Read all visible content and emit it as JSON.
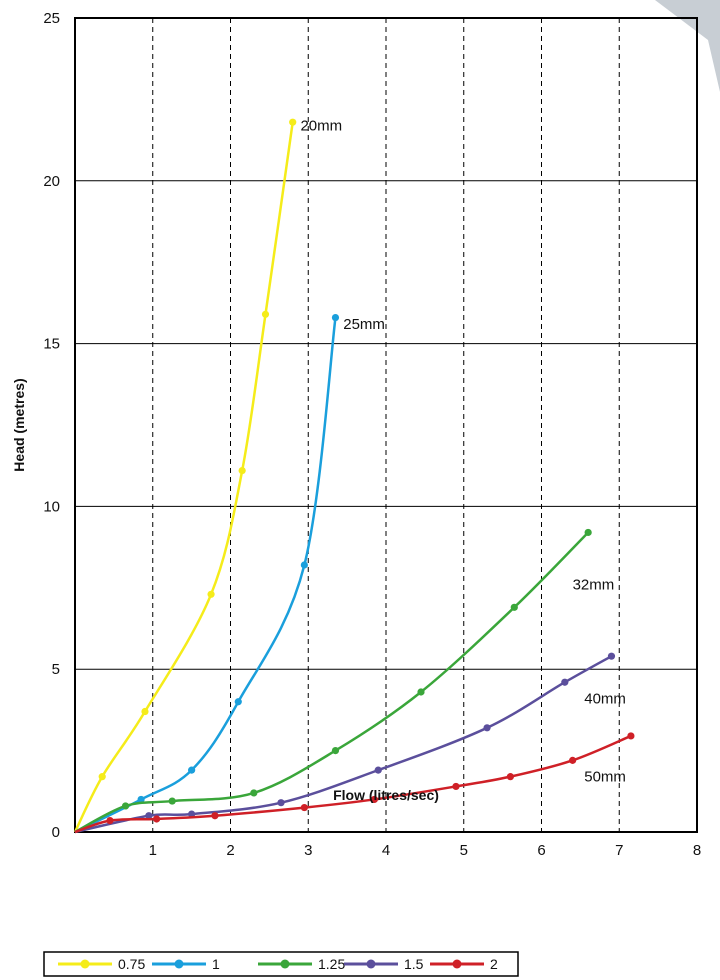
{
  "chart_data": {
    "type": "line",
    "xlabel": "Flow (litres/sec)",
    "ylabel": "Head (metres)",
    "xlim": [
      0,
      8
    ],
    "ylim": [
      0,
      25
    ],
    "x_ticks": [
      1,
      2,
      3,
      4,
      5,
      6,
      7,
      8
    ],
    "x_ticks_shown": [
      "1",
      "2",
      "3",
      "4",
      "5",
      "6",
      "7",
      "8"
    ],
    "y_ticks": [
      0,
      5,
      10,
      15,
      20,
      25
    ],
    "y_ticks_shown": [
      "0",
      "5",
      "10",
      "15",
      "20",
      "25"
    ],
    "grid": {
      "horizontal": "solid",
      "vertical": "dashed"
    },
    "legend_position": "bottom-left",
    "series": [
      {
        "name": "0.75",
        "color": "#f5ec1a",
        "points": [
          [
            0,
            0
          ],
          [
            0.35,
            1.7
          ],
          [
            0.9,
            3.7
          ],
          [
            1.75,
            7.3
          ],
          [
            2.15,
            11.1
          ],
          [
            2.45,
            15.9
          ],
          [
            2.8,
            21.8
          ]
        ]
      },
      {
        "name": "1",
        "color": "#1a9fdc",
        "points": [
          [
            0,
            0
          ],
          [
            0.85,
            1.0
          ],
          [
            1.5,
            1.9
          ],
          [
            2.1,
            4.0
          ],
          [
            2.95,
            8.2
          ],
          [
            3.35,
            15.8
          ]
        ]
      },
      {
        "name": "1.25",
        "color": "#3aa63a",
        "points": [
          [
            0,
            0
          ],
          [
            0.65,
            0.8
          ],
          [
            1.25,
            0.95
          ],
          [
            2.3,
            1.2
          ],
          [
            3.35,
            2.5
          ],
          [
            4.45,
            4.3
          ],
          [
            5.65,
            6.9
          ],
          [
            6.6,
            9.2
          ]
        ]
      },
      {
        "name": "1.5",
        "color": "#5b4f9c",
        "points": [
          [
            0,
            0
          ],
          [
            0.95,
            0.5
          ],
          [
            1.5,
            0.55
          ],
          [
            2.65,
            0.9
          ],
          [
            3.9,
            1.9
          ],
          [
            5.3,
            3.2
          ],
          [
            6.3,
            4.6
          ],
          [
            6.9,
            5.4
          ]
        ]
      },
      {
        "name": "2",
        "color": "#cf2027",
        "points": [
          [
            0,
            0
          ],
          [
            0.45,
            0.35
          ],
          [
            1.05,
            0.4
          ],
          [
            1.8,
            0.5
          ],
          [
            2.95,
            0.75
          ],
          [
            3.85,
            1.0
          ],
          [
            4.9,
            1.4
          ],
          [
            5.6,
            1.7
          ],
          [
            6.4,
            2.2
          ],
          [
            7.15,
            2.95
          ]
        ]
      }
    ],
    "annotations": [
      {
        "text": "20mm",
        "x": 2.9,
        "y": 21.7
      },
      {
        "text": "25mm",
        "x": 3.45,
        "y": 15.6
      },
      {
        "text": "32mm",
        "x": 6.4,
        "y": 7.6
      },
      {
        "text": "40mm",
        "x": 6.55,
        "y": 4.1
      },
      {
        "text": "50mm",
        "x": 6.55,
        "y": 1.7
      }
    ]
  }
}
